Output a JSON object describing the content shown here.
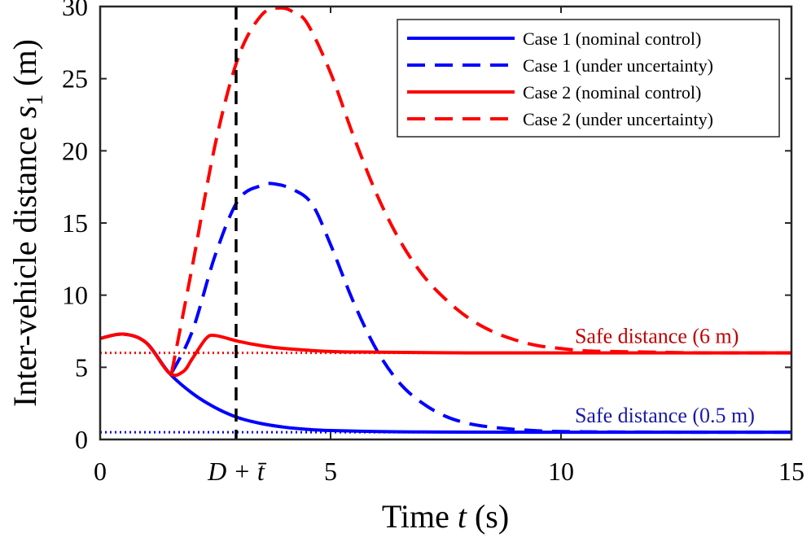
{
  "chart_data": {
    "type": "line",
    "xlabel_text": "Time ",
    "xlabel_var": "t",
    "xlabel_unit": " (s)",
    "ylabel_text": "Inter-vehicle distance ",
    "ylabel_var": "s",
    "ylabel_sub": "1",
    "ylabel_unit": " (m)",
    "xlim": [
      0,
      15
    ],
    "ylim": [
      0,
      30
    ],
    "xticks": [
      0,
      5,
      10,
      15
    ],
    "yticks": [
      0,
      5,
      10,
      15,
      20,
      25,
      30
    ],
    "delay_marker": {
      "x": 2.95,
      "label": "D + t̄"
    },
    "safe_distances": [
      {
        "value": 6,
        "label": "Safe distance (6 m)",
        "label_x": 10.3,
        "color": "#c00000"
      },
      {
        "value": 0.5,
        "label": "Safe distance (0.5 m)",
        "label_x": 10.3,
        "color": "#1a1aa8"
      }
    ],
    "series": [
      {
        "name": "Case 1 (nominal control)",
        "color": "#0000ff",
        "style": "solid",
        "x": [
          0,
          0.5,
          1.0,
          1.5,
          2.0,
          2.5,
          3.0,
          3.5,
          4.0,
          4.5,
          5.0,
          6.0,
          7.0,
          8.0,
          10.0,
          12.0,
          15.0
        ],
        "y": [
          7.0,
          7.3,
          6.7,
          4.6,
          3.2,
          2.2,
          1.5,
          1.1,
          0.85,
          0.7,
          0.62,
          0.55,
          0.52,
          0.51,
          0.5,
          0.5,
          0.5
        ]
      },
      {
        "name": "Case 1 (under uncertainty)",
        "color": "#0000ff",
        "style": "dashed",
        "x": [
          1.55,
          2.0,
          2.5,
          3.0,
          3.5,
          3.8,
          4.2,
          4.6,
          5.0,
          5.5,
          6.0,
          6.5,
          7.0,
          7.5,
          8.0,
          8.5,
          9.0,
          9.5,
          10.0,
          10.5,
          11.0,
          12.0,
          13.0,
          15.0
        ],
        "y": [
          4.6,
          7.5,
          12.8,
          16.6,
          17.6,
          17.7,
          17.3,
          16.3,
          13.5,
          9.5,
          6.2,
          3.9,
          2.5,
          1.6,
          1.1,
          0.85,
          0.7,
          0.6,
          0.55,
          0.53,
          0.52,
          0.51,
          0.5,
          0.5
        ]
      },
      {
        "name": "Case 2 (nominal control)",
        "color": "#ff0000",
        "style": "solid",
        "x": [
          0,
          0.5,
          1.0,
          1.5,
          1.8,
          2.0,
          2.3,
          2.5,
          3.0,
          3.5,
          4.0,
          5.0,
          6.0,
          8.0,
          10.0,
          12.0,
          15.0
        ],
        "y": [
          7.0,
          7.3,
          6.7,
          4.6,
          4.7,
          5.6,
          7.0,
          7.2,
          6.8,
          6.5,
          6.3,
          6.1,
          6.05,
          6.0,
          6.0,
          6.0,
          6.0
        ]
      },
      {
        "name": "Case 2 (under uncertainty)",
        "color": "#ff0000",
        "style": "dashed",
        "x": [
          1.55,
          2.0,
          2.5,
          3.0,
          3.5,
          3.9,
          4.2,
          4.5,
          5.0,
          5.5,
          6.0,
          6.5,
          7.0,
          7.5,
          8.0,
          8.5,
          9.0,
          9.5,
          10.0,
          10.5,
          11.0,
          12.0,
          13.0,
          15.0
        ],
        "y": [
          4.6,
          12.0,
          20.5,
          26.5,
          29.4,
          29.9,
          29.6,
          28.8,
          25.4,
          21.0,
          17.0,
          13.8,
          11.4,
          9.7,
          8.4,
          7.5,
          6.9,
          6.5,
          6.3,
          6.15,
          6.1,
          6.05,
          6.0,
          6.0
        ]
      }
    ],
    "legend_location": "top-right"
  }
}
